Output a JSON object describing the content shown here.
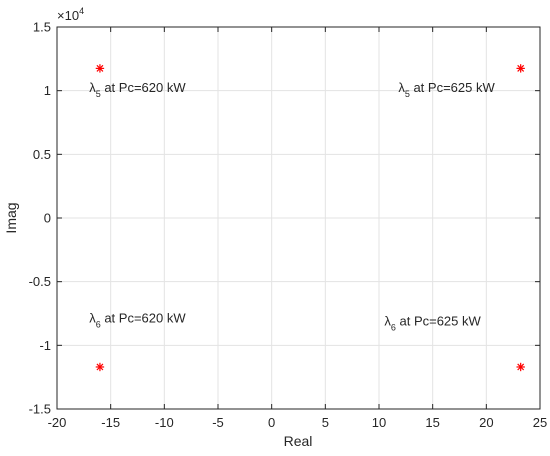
{
  "chart_data": {
    "type": "scatter",
    "xlabel": "Real",
    "ylabel": "Imag",
    "xlim": [
      -20,
      25
    ],
    "ylim": [
      -15000,
      15000
    ],
    "x_ticks": [
      -20,
      -15,
      -10,
      -5,
      0,
      5,
      10,
      15,
      20,
      25
    ],
    "y_ticks": [
      -15000,
      -10000,
      -5000,
      0,
      5000,
      10000,
      15000
    ],
    "y_tick_labels": [
      "-1.5",
      "-1",
      "-0.5",
      "0",
      "0.5",
      "1",
      "1.5"
    ],
    "y_exponent_base": "×10",
    "y_exponent_power": "4",
    "grid": true,
    "marker": "*",
    "marker_color": "#ff0000",
    "points": [
      {
        "x": -16.0,
        "y": 11750
      },
      {
        "x": 23.2,
        "y": 11750
      },
      {
        "x": -16.0,
        "y": -11700
      },
      {
        "x": 23.2,
        "y": -11700
      }
    ],
    "annotations": [
      {
        "symbol": "λ",
        "sub": "5",
        "text": " at Pc=620 kW",
        "x": -17.0,
        "y": 9900
      },
      {
        "symbol": "λ",
        "sub": "5",
        "text": " at Pc=625 kW",
        "x": 11.8,
        "y": 9900
      },
      {
        "symbol": "λ",
        "sub": "6",
        "text": " at Pc=620 kW",
        "x": -17.0,
        "y": -8200
      },
      {
        "symbol": "λ",
        "sub": "6",
        "text": " at Pc=625 kW",
        "x": 10.5,
        "y": -8450
      }
    ]
  }
}
